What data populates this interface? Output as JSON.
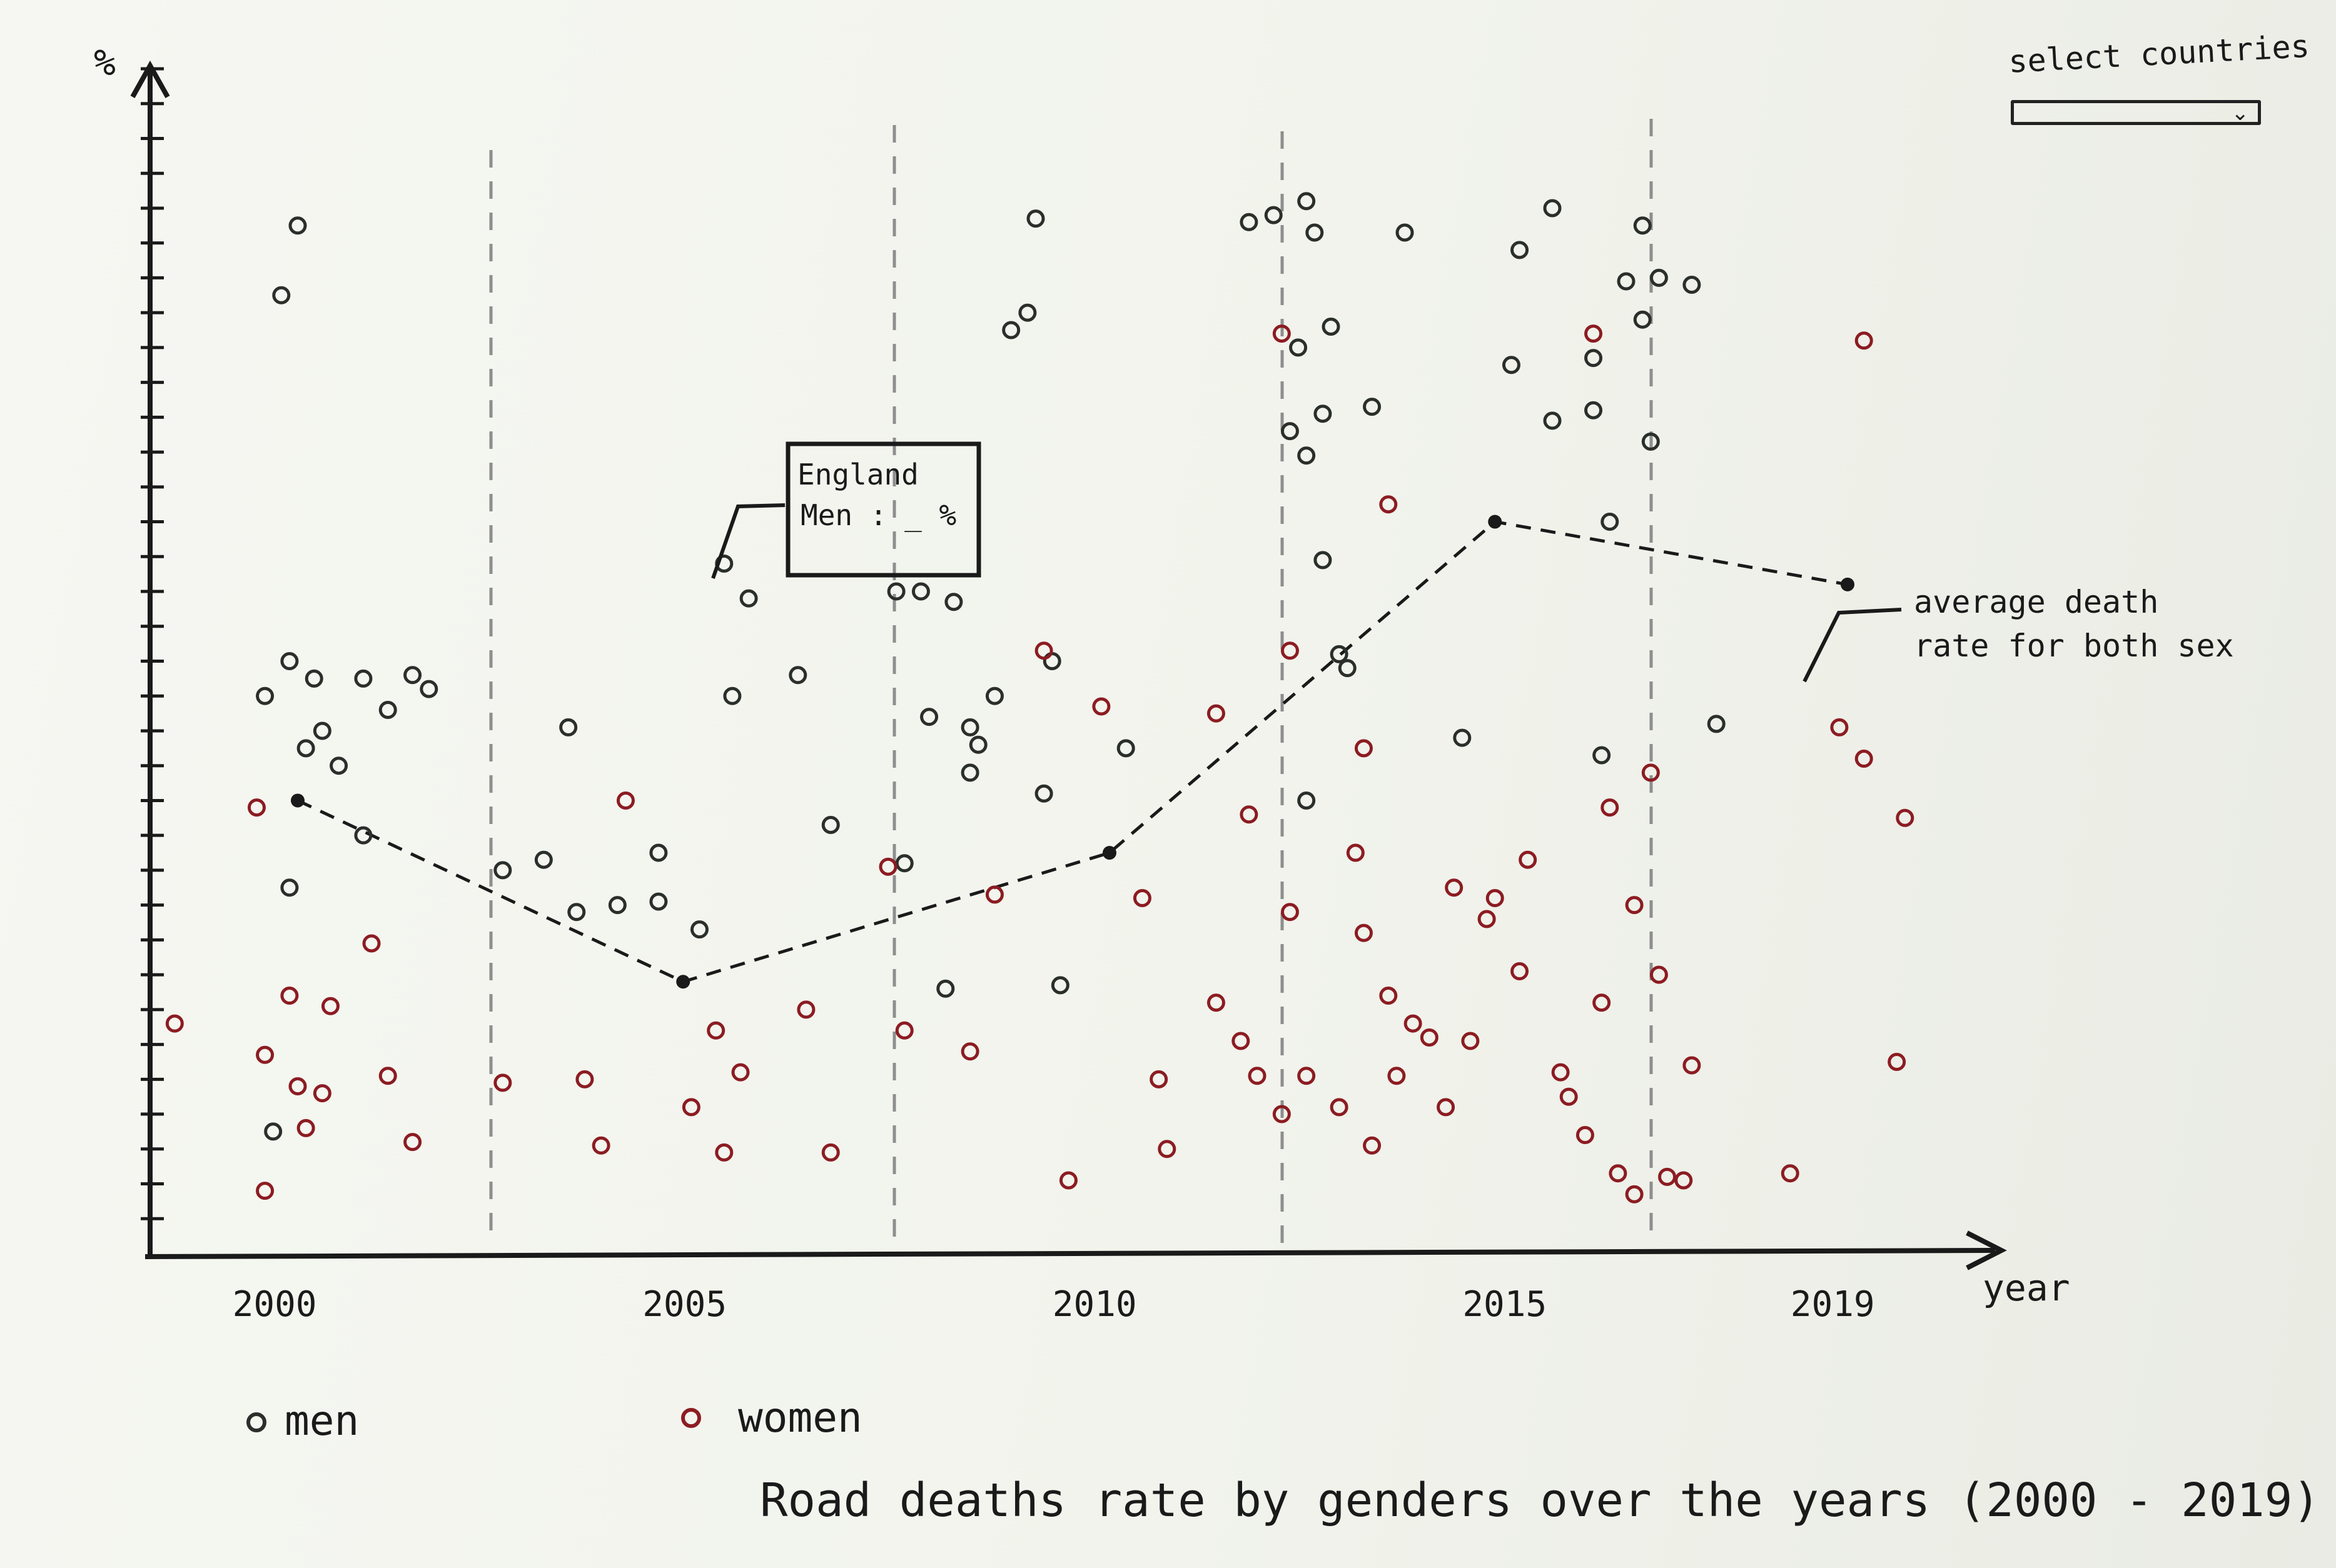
{
  "title": "Road deaths rate by genders over the years (2000 - 2019)",
  "controls": {
    "select_label": "select countries",
    "select_chevron": "chevron-down-icon"
  },
  "tooltip": {
    "line1": "England",
    "line2": "Men : _ %"
  },
  "annotation": {
    "line1": "average death",
    "line2": "rate for both sex"
  },
  "colors": {
    "men": "#2b2f2b",
    "women": "#8c1c22",
    "ink": "#1a1a1a",
    "grid": "#8e8e8e"
  },
  "chart_data": {
    "type": "scatter",
    "title": "Road deaths rate by genders over the years (2000 - 2019)",
    "xlabel": "year",
    "ylabel": "%",
    "x_ticks": [
      "2000",
      "2005",
      "2010",
      "2015",
      "2019"
    ],
    "xlim": [
      1998.5,
      2021
    ],
    "ylim": [
      0,
      34
    ],
    "grid": "vertical dashed",
    "legend": [
      "men",
      "women"
    ],
    "legend_position": "bottom-left",
    "series": [
      {
        "name": "men",
        "points": [
          [
            2000.3,
            29.5
          ],
          [
            2000.1,
            27.5
          ],
          [
            2000.2,
            17
          ],
          [
            1999.9,
            16
          ],
          [
            2000.5,
            16.5
          ],
          [
            2000.4,
            14.5
          ],
          [
            2000.6,
            15
          ],
          [
            2000.8,
            14
          ],
          [
            2001.1,
            16.5
          ],
          [
            2001.4,
            15.6
          ],
          [
            2001.7,
            16.6
          ],
          [
            2001.9,
            16.2
          ],
          [
            2000.2,
            10.5
          ],
          [
            2001.1,
            12
          ],
          [
            2000.0,
            3.5
          ],
          [
            2003.6,
            15.1
          ],
          [
            2002.8,
            11
          ],
          [
            2003.3,
            11.3
          ],
          [
            2003.7,
            9.8
          ],
          [
            2004.2,
            10
          ],
          [
            2004.7,
            11.5
          ],
          [
            2004.7,
            10.1
          ],
          [
            2005.2,
            9.3
          ],
          [
            2005.5,
            19.8
          ],
          [
            2005.8,
            18.8
          ],
          [
            2005.6,
            16
          ],
          [
            2006.4,
            16.6
          ],
          [
            2006.8,
            12.3
          ],
          [
            2007.6,
            19
          ],
          [
            2007.9,
            19
          ],
          [
            2008.3,
            18.7
          ],
          [
            2008.0,
            15.4
          ],
          [
            2008.5,
            15.1
          ],
          [
            2008.8,
            16
          ],
          [
            2008.6,
            14.6
          ],
          [
            2008.5,
            13.8
          ],
          [
            2007.7,
            11.2
          ],
          [
            2008.2,
            7.6
          ],
          [
            2009.0,
            26.5
          ],
          [
            2009.2,
            27
          ],
          [
            2009.3,
            29.7
          ],
          [
            2009.5,
            17
          ],
          [
            2009.4,
            13.2
          ],
          [
            2009.6,
            7.7
          ],
          [
            2010.4,
            14.5
          ],
          [
            2011.9,
            29.6
          ],
          [
            2012.2,
            29.8
          ],
          [
            2012.6,
            30.2
          ],
          [
            2012.7,
            29.3
          ],
          [
            2013.8,
            29.3
          ],
          [
            2012.9,
            26.6
          ],
          [
            2012.5,
            26
          ],
          [
            2012.8,
            24.1
          ],
          [
            2013.4,
            24.3
          ],
          [
            2012.4,
            23.6
          ],
          [
            2012.6,
            22.9
          ],
          [
            2012.8,
            19.9
          ],
          [
            2013.0,
            17.2
          ],
          [
            2012.6,
            13
          ],
          [
            2013.1,
            16.8
          ],
          [
            2014.5,
            14.8
          ],
          [
            2015.6,
            30
          ],
          [
            2015.2,
            28.8
          ],
          [
            2016.7,
            29.5
          ],
          [
            2016.5,
            27.9
          ],
          [
            2016.7,
            26.8
          ],
          [
            2015.1,
            25.5
          ],
          [
            2016.1,
            25.7
          ],
          [
            2015.6,
            23.9
          ],
          [
            2016.1,
            24.2
          ],
          [
            2016.3,
            21
          ],
          [
            2016.8,
            23.3
          ],
          [
            2017.6,
            15.2
          ],
          [
            2016.2,
            14.3
          ],
          [
            2017.3,
            27.8
          ],
          [
            2016.9,
            28
          ]
        ]
      },
      {
        "name": "women",
        "points": [
          [
            1998.8,
            6.6
          ],
          [
            1999.8,
            12.8
          ],
          [
            1999.9,
            5.7
          ],
          [
            1999.9,
            1.8
          ],
          [
            2000.4,
            3.6
          ],
          [
            2000.2,
            7.4
          ],
          [
            2000.7,
            7.1
          ],
          [
            2001.2,
            8.9
          ],
          [
            2000.3,
            4.8
          ],
          [
            2000.6,
            4.6
          ],
          [
            2001.4,
            5.1
          ],
          [
            2001.7,
            3.2
          ],
          [
            2002.8,
            4.9
          ],
          [
            2003.8,
            5
          ],
          [
            2004.0,
            3.1
          ],
          [
            2004.3,
            13
          ],
          [
            2005.1,
            4.2
          ],
          [
            2005.4,
            6.4
          ],
          [
            2005.7,
            5.2
          ],
          [
            2005.5,
            2.9
          ],
          [
            2006.5,
            7
          ],
          [
            2006.8,
            2.9
          ],
          [
            2007.5,
            11.1
          ],
          [
            2007.7,
            6.4
          ],
          [
            2008.5,
            5.8
          ],
          [
            2008.8,
            10.3
          ],
          [
            2009.4,
            17.3
          ],
          [
            2009.7,
            2.1
          ],
          [
            2010.1,
            15.7
          ],
          [
            2010.6,
            10.2
          ],
          [
            2010.8,
            5
          ],
          [
            2010.9,
            3
          ],
          [
            2011.5,
            7.2
          ],
          [
            2011.5,
            15.5
          ],
          [
            2011.9,
            12.6
          ],
          [
            2012.3,
            26.4
          ],
          [
            2012.4,
            17.3
          ],
          [
            2011.8,
            6.1
          ],
          [
            2012.0,
            5.1
          ],
          [
            2012.3,
            4
          ],
          [
            2012.4,
            9.8
          ],
          [
            2012.6,
            5.1
          ],
          [
            2013.0,
            4.2
          ],
          [
            2013.4,
            3.1
          ],
          [
            2013.6,
            21.5
          ],
          [
            2013.3,
            14.5
          ],
          [
            2013.2,
            11.5
          ],
          [
            2013.3,
            9.2
          ],
          [
            2013.7,
            5.1
          ],
          [
            2013.9,
            6.6
          ],
          [
            2013.6,
            7.4
          ],
          [
            2014.1,
            6.2
          ],
          [
            2014.3,
            4.2
          ],
          [
            2014.4,
            10.5
          ],
          [
            2014.6,
            6.1
          ],
          [
            2014.9,
            10.2
          ],
          [
            2014.8,
            9.6
          ],
          [
            2015.3,
            11.3
          ],
          [
            2015.2,
            8.1
          ],
          [
            2016.1,
            26.4
          ],
          [
            2016.8,
            13.8
          ],
          [
            2016.2,
            7.2
          ],
          [
            2015.7,
            5.2
          ],
          [
            2015.8,
            4.5
          ],
          [
            2016.0,
            3.4
          ],
          [
            2016.3,
            12.8
          ],
          [
            2016.6,
            10
          ],
          [
            2016.9,
            8
          ],
          [
            2017.3,
            5.4
          ],
          [
            2016.4,
            2.3
          ],
          [
            2016.6,
            1.7
          ],
          [
            2017.0,
            2.2
          ],
          [
            2017.2,
            2.1
          ],
          [
            2018.5,
            2.3
          ],
          [
            2019.1,
            15.1
          ],
          [
            2019.4,
            26.2
          ],
          [
            2019.4,
            14.2
          ],
          [
            2019.8,
            5.5
          ],
          [
            2019.9,
            12.5
          ]
        ]
      },
      {
        "name": "average death rate for both sex",
        "type": "line",
        "points": [
          [
            2000.3,
            13
          ],
          [
            2005.0,
            7.8
          ],
          [
            2010.2,
            11.5
          ],
          [
            2014.9,
            21
          ],
          [
            2019.2,
            19.2
          ]
        ]
      }
    ]
  }
}
